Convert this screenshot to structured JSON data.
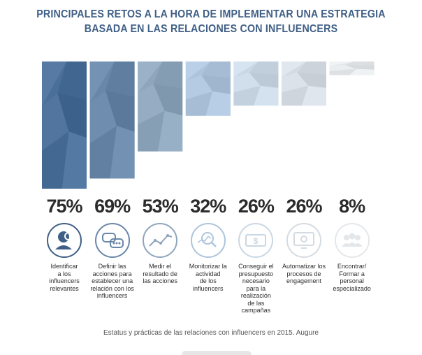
{
  "title": {
    "line1": "PRINCIPALES RETOS A LA HORA DE IMPLEMENTAR UNA ESTRATEGIA",
    "line2": "BASADA EN LAS RELACIONES CON INFLUENCERS"
  },
  "chart_data": {
    "type": "bar",
    "title": "PRINCIPALES RETOS A LA HORA DE IMPLEMENTAR UNA ESTRATEGIA BASADA EN LAS RELACIONES CON INFLUENCERS",
    "categories": [
      "Identificar a los influencers relevantes",
      "Definir las acciones para establecer una relación con los influencers",
      "Medir el resultado de las acciones",
      "Monitorizar la actividad de los influencers",
      "Conseguir el presupuesto necesario para la realización de las campañas",
      "Automatizar los procesos de engagement",
      "Encontrar/ Formar a personal especializado"
    ],
    "values": [
      75,
      69,
      53,
      32,
      26,
      26,
      8
    ],
    "value_labels": [
      "75%",
      "69%",
      "53%",
      "32%",
      "26%",
      "26%",
      "8%"
    ],
    "icons": [
      "user-search-icon",
      "chat-bubbles-icon",
      "line-chart-icon",
      "magnifier-chart-icon",
      "money-icon",
      "gear-monitor-icon",
      "team-icon"
    ],
    "colors": [
      "#4a6f98",
      "#6987a8",
      "#8ea5bc",
      "#aec4dc",
      "#cad7e4",
      "#d4dbe2",
      "#e4e7ea"
    ],
    "ylim": [
      0,
      75
    ],
    "xlabel": "",
    "ylabel": "",
    "grid": false,
    "legend": "none"
  },
  "labels": [
    {
      "pct": "75%",
      "lines": [
        "Identificar",
        "a los",
        "influencers",
        "relevantes"
      ]
    },
    {
      "pct": "69%",
      "lines": [
        "Definir las",
        "acciones para",
        "establecer una",
        "relación con los",
        "influencers"
      ]
    },
    {
      "pct": "53%",
      "lines": [
        "Medir el",
        "resultado de",
        "las acciones"
      ]
    },
    {
      "pct": "32%",
      "lines": [
        "Monitorizar la",
        "actividad",
        "de los",
        "influencers"
      ]
    },
    {
      "pct": "26%",
      "lines": [
        "Conseguir el",
        "presupuesto",
        "necesario",
        "para la",
        "realización",
        "de las",
        "campañas"
      ]
    },
    {
      "pct": "26%",
      "lines": [
        "Automatizar los",
        "procesos de",
        "engagement"
      ]
    },
    {
      "pct": "8%",
      "lines": [
        "Encontrar/",
        "Formar a",
        "personal",
        "especializado"
      ]
    }
  ],
  "source": "Estatus y prácticas de las relaciones con influencers en 2015. Augure"
}
